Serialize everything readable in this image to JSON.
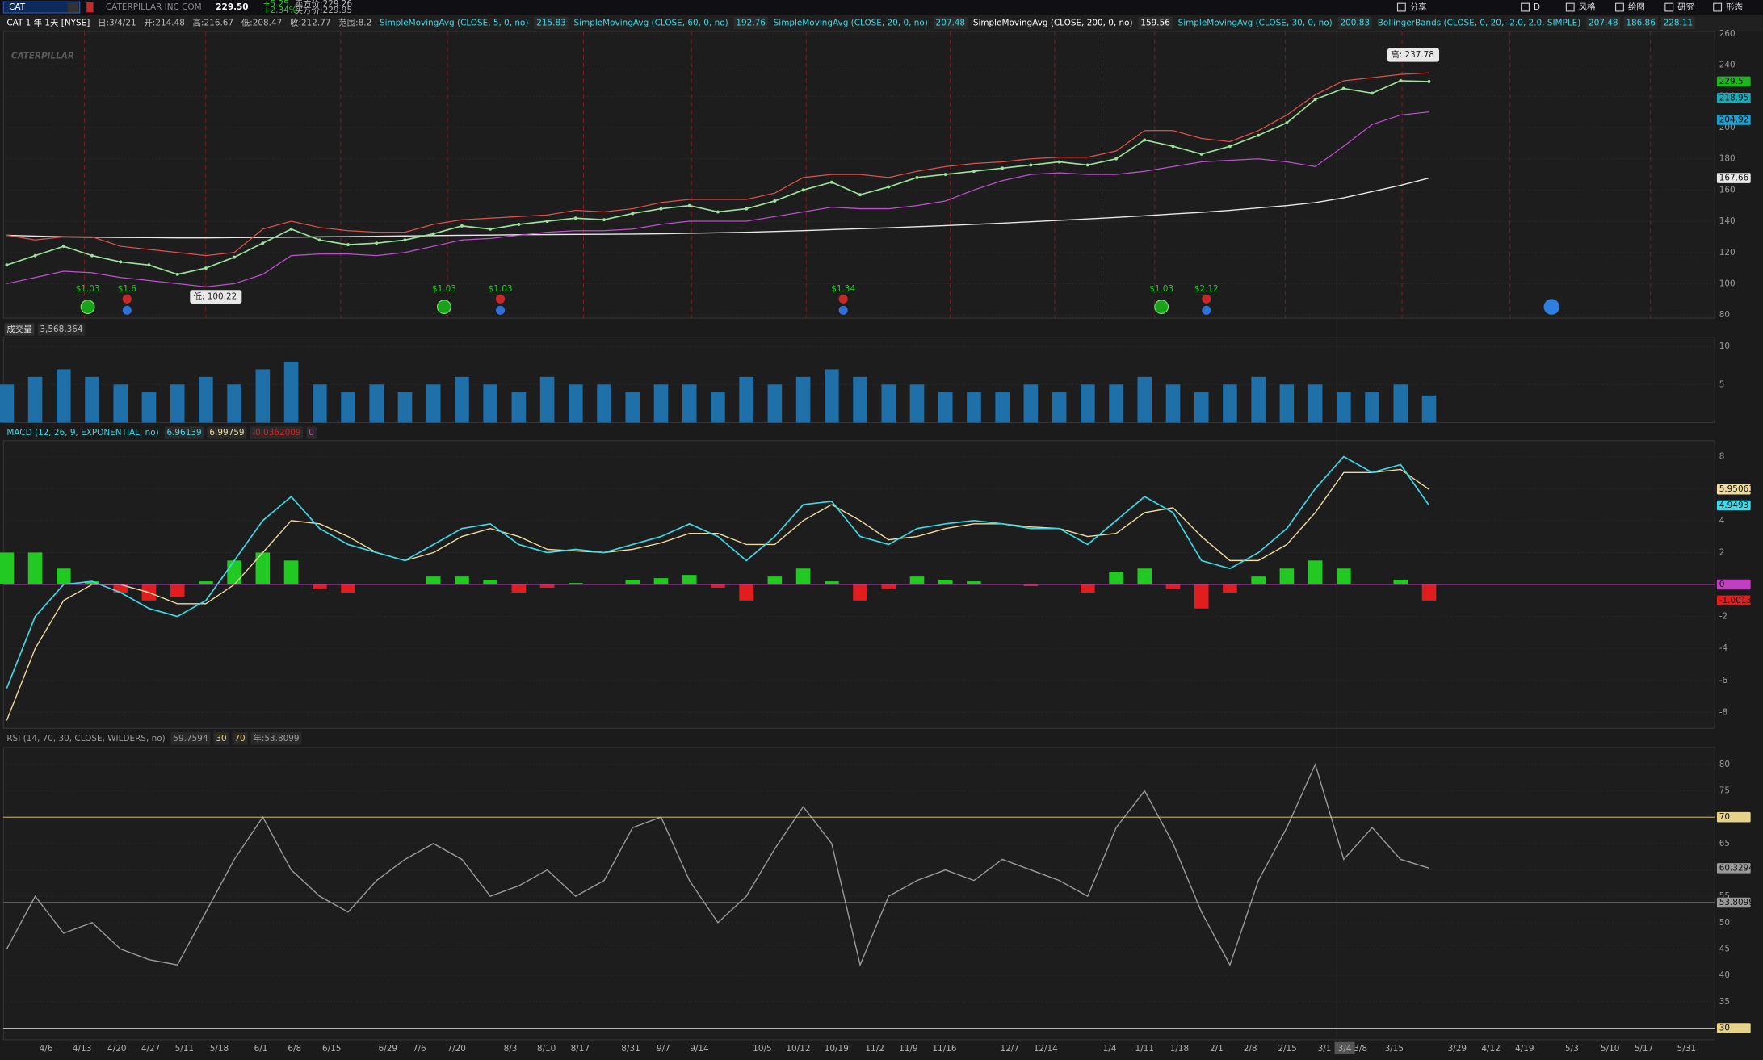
{
  "toolbar": {
    "symbol": "CAT",
    "company": "CATERPILLAR INC COM",
    "last": "229.50",
    "change": "+5.25",
    "change_pct": "+2.34%",
    "bid": "卖方价:229.26",
    "ask": "买方价:229.95",
    "buttons": [
      "分享",
      "D",
      "风格",
      "绘图",
      "研究",
      "形态"
    ]
  },
  "chart_header": {
    "symbol": "CAT 1 年 1天 [NYSE]",
    "fields": [
      "日:3/4/21",
      "开:214.48",
      "高:216.67",
      "低:208.47",
      "收:212.77",
      "范围:8.2"
    ],
    "studies": [
      {
        "label": "SimpleMovingAvg (CLOSE, 5, 0, no)",
        "values": [
          "215.83"
        ],
        "color": "#3fd8e6"
      },
      {
        "label": "SimpleMovingAvg (CLOSE, 60, 0, no)",
        "values": [
          "192.76"
        ],
        "color": "#3fd8e6"
      },
      {
        "label": "SimpleMovingAvg (CLOSE, 20, 0, no)",
        "values": [
          "207.48"
        ],
        "color": "#3fd8e6"
      },
      {
        "label": "SimpleMovingAvg (CLOSE, 200, 0, no)",
        "values": [
          "159.56"
        ],
        "color": "#ffffff"
      },
      {
        "label": "SimpleMovingAvg (CLOSE, 30, 0, no)",
        "values": [
          "200.83"
        ],
        "color": "#3fd8e6"
      },
      {
        "label": "BollingerBands (CLOSE, 0, 20, -2.0, 2.0, SIMPLE)",
        "values": [
          "207.48",
          "186.86",
          "228.11"
        ],
        "color": "#3fd8e6"
      }
    ]
  },
  "watermark": "CATERPILLAR",
  "price": {
    "ylim": [
      78,
      261.5
    ],
    "yticks": [
      80,
      100,
      120,
      140,
      160,
      180,
      200,
      220,
      240,
      260
    ],
    "close": [
      112,
      118,
      124,
      118,
      114,
      112,
      106,
      110,
      117,
      126,
      135,
      128,
      125,
      126,
      128,
      132,
      137,
      135,
      138,
      140,
      142,
      141,
      145,
      148,
      150,
      146,
      148,
      153,
      160,
      165,
      157,
      162,
      168,
      170,
      172,
      174,
      176,
      178,
      176,
      180,
      192,
      188,
      183,
      188,
      195,
      203,
      218,
      225,
      222,
      230,
      229.5
    ],
    "sma200": [
      131,
      130.5,
      130,
      129.8,
      129.6,
      129.5,
      129.4,
      129.4,
      129.5,
      129.6,
      129.8,
      130,
      130.2,
      130.4,
      130.6,
      130.8,
      131,
      131.2,
      131.4,
      131.5,
      131.6,
      131.7,
      131.8,
      132,
      132.3,
      132.6,
      133,
      133.5,
      134,
      134.6,
      135.2,
      135.8,
      136.5,
      137.2,
      138,
      138.8,
      139.7,
      140.6,
      141.5,
      142.5,
      143.5,
      144.6,
      145.7,
      147,
      148.5,
      150,
      152,
      155,
      159,
      163,
      167.66
    ],
    "bb_upper": [
      131,
      128,
      130,
      130,
      124,
      122,
      120,
      118,
      120,
      135,
      140,
      136,
      134,
      133,
      133,
      138,
      141,
      142,
      143,
      144,
      147,
      146,
      148,
      152,
      154,
      154,
      154,
      158,
      168,
      170,
      170,
      168,
      172,
      175,
      177,
      178,
      180,
      181,
      181,
      185,
      198,
      198,
      193,
      191,
      198,
      208,
      221,
      230,
      232,
      234,
      235
    ],
    "bb_lower": [
      100,
      104,
      108,
      107,
      104,
      102,
      100,
      98,
      100,
      106,
      118,
      119,
      119,
      118,
      120,
      124,
      128,
      129,
      131,
      133,
      134,
      134,
      135,
      138,
      140,
      140,
      140,
      143,
      146,
      149,
      148,
      148,
      150,
      153,
      160,
      166,
      170,
      171,
      170,
      170,
      172,
      175,
      178,
      179,
      180,
      178,
      175,
      188,
      202,
      208,
      210
    ],
    "colors": {
      "close": "#9be29b",
      "sma200": "#e8e8e8",
      "bb_upper": "#e0504a",
      "bb_lower": "#c04fd0"
    },
    "tags": [
      {
        "value": 229.5,
        "color": "#1fb51f"
      },
      {
        "value": 218.95,
        "color": "#1fa8b5"
      },
      {
        "value": 204.92,
        "color": "#1f9fd0"
      },
      {
        "value": 167.66,
        "color": "#e8e8e8"
      }
    ],
    "high_note": "高: 237.78",
    "low_note": "低: 100.22",
    "events": [
      {
        "label": "$1.03",
        "kind": "dividend"
      },
      {
        "label": "$1.6",
        "kind": "earnings"
      },
      {
        "label": "$1.03",
        "kind": "dividend"
      },
      {
        "label": "$1.03",
        "kind": "earnings"
      },
      {
        "label": "$1.34",
        "kind": "earnings"
      },
      {
        "label": "$1.03",
        "kind": "dividend"
      },
      {
        "label": "$2.12",
        "kind": "earnings"
      }
    ]
  },
  "volume": {
    "title": "成交量",
    "last": "3,568,364",
    "ylim": [
      0,
      11.2
    ],
    "yticks": [
      5,
      10
    ],
    "color": "#1f6fa8",
    "values": [
      5,
      6,
      7,
      6,
      5,
      4,
      5,
      6,
      5,
      7,
      8,
      5,
      4,
      5,
      4,
      5,
      6,
      5,
      4,
      6,
      5,
      5,
      4,
      5,
      5,
      4,
      6,
      5,
      6,
      7,
      6,
      5,
      5,
      4,
      4,
      4,
      5,
      4,
      5,
      5,
      6,
      5,
      4,
      5,
      6,
      5,
      5,
      4,
      4,
      5,
      3.568364
    ]
  },
  "macd": {
    "label": "MACD (12, 26, 9, EXPONENTIAL, no)",
    "readouts": [
      "6.96139",
      "6.99759",
      "-0.0362009",
      "0"
    ],
    "ylim": [
      -9,
      9
    ],
    "yticks": [
      -8,
      -6,
      -4,
      -2,
      0,
      2,
      4,
      6,
      8
    ],
    "value": [
      -6.5,
      -2,
      0,
      0.2,
      -0.5,
      -1.5,
      -2,
      -1,
      1.5,
      4,
      5.5,
      3.5,
      2.5,
      2,
      1.5,
      2.5,
      3.5,
      3.8,
      2.5,
      2,
      2.2,
      2,
      2.5,
      3,
      3.8,
      3,
      1.5,
      3,
      5,
      5.2,
      3,
      2.5,
      3.5,
      3.8,
      4,
      3.8,
      3.5,
      3.5,
      2.5,
      4,
      5.5,
      4.5,
      1.5,
      1,
      2,
      3.5,
      6,
      8,
      7,
      7.5,
      4.9493
    ],
    "avg": [
      -8.5,
      -4,
      -1,
      0,
      0,
      -0.5,
      -1.2,
      -1.2,
      0,
      2,
      4,
      3.8,
      3,
      2,
      1.5,
      2,
      3,
      3.5,
      3,
      2.2,
      2.1,
      2,
      2.2,
      2.6,
      3.2,
      3.2,
      2.5,
      2.5,
      4,
      5,
      4,
      2.8,
      3,
      3.5,
      3.8,
      3.8,
      3.6,
      3.5,
      3,
      3.2,
      4.5,
      4.8,
      3,
      1.5,
      1.5,
      2.5,
      4.5,
      7,
      7,
      7.2,
      5.95063
    ],
    "diff": [
      2,
      2,
      1,
      0.2,
      -0.5,
      -1,
      -0.8,
      0.2,
      1.5,
      2,
      1.5,
      -0.3,
      -0.5,
      0,
      0,
      0.5,
      0.5,
      0.3,
      -0.5,
      -0.2,
      0.1,
      0,
      0.3,
      0.4,
      0.6,
      -0.2,
      -1,
      0.5,
      1,
      0.2,
      -1,
      -0.3,
      0.5,
      0.3,
      0.2,
      0,
      -0.1,
      0,
      -0.5,
      0.8,
      1,
      -0.3,
      -1.5,
      -0.5,
      0.5,
      1,
      1.5,
      1,
      0,
      0.3,
      -1.0013
    ],
    "colors": {
      "value": "#3fd8e6",
      "avg": "#f0dca0",
      "up": "#22c922",
      "down": "#e01e1e"
    },
    "tags": [
      {
        "value": 5.95063,
        "color": "#f0dca0"
      },
      {
        "value": 4.9493,
        "color": "#3fd8e6"
      },
      {
        "value": 0,
        "color": "#c040c0",
        "line": true
      },
      {
        "value": -1.0013,
        "color": "#e01e1e"
      }
    ]
  },
  "rsi": {
    "label": "RSI (14, 70, 30, CLOSE, WILDERS, no)",
    "readouts": [
      "59.7594",
      "30",
      "70",
      "年:53.8099"
    ],
    "ylim": [
      27.8,
      83.2
    ],
    "yticks": [
      30,
      35,
      40,
      45,
      50,
      55,
      60,
      65,
      70,
      75,
      80
    ],
    "color": "#9a9a9a",
    "values": [
      45,
      55,
      48,
      50,
      45,
      43,
      42,
      52,
      62,
      70,
      60,
      55,
      52,
      58,
      62,
      65,
      62,
      55,
      57,
      60,
      55,
      58,
      68,
      70,
      58,
      50,
      55,
      64,
      72,
      65,
      42,
      55,
      58,
      60,
      58,
      62,
      60,
      58,
      55,
      68,
      75,
      65,
      52,
      42,
      58,
      68,
      80,
      62,
      68,
      62,
      60.3294
    ],
    "tags": [
      {
        "value": 70,
        "color": "#e6d38a",
        "line": true
      },
      {
        "value": 60.3294,
        "color": "#9a9a9a"
      },
      {
        "value": 53.8099,
        "color": "#9a9a9a",
        "line": true
      },
      {
        "value": 30,
        "color": "#e6d38a",
        "line": true
      }
    ]
  },
  "x_labels": [
    "4/6",
    "4/13",
    "4/20",
    "4/27",
    "5/11",
    "5/18",
    "6/1",
    "6/8",
    "6/15",
    "6/29",
    "7/6",
    "7/20",
    "8/3",
    "8/10",
    "8/17",
    "8/31",
    "9/7",
    "9/14",
    "10/5",
    "10/12",
    "10/19",
    "11/2",
    "11/9",
    "11/16",
    "12/7",
    "12/14",
    "1/4",
    "1/11",
    "1/18",
    "2/1",
    "2/8",
    "2/15",
    "3/1",
    "3/4",
    "3/8",
    "3/15",
    "3/29",
    "4/12",
    "4/19",
    "5/3",
    "5/10",
    "5/17",
    "5/31"
  ]
}
